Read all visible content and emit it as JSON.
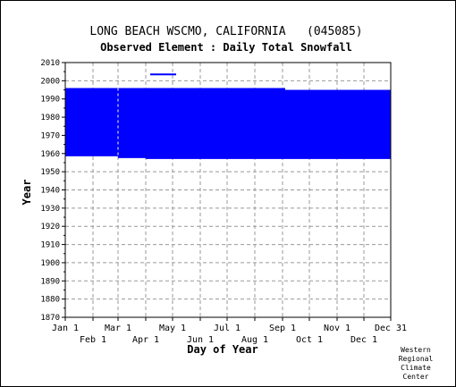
{
  "chart_data": {
    "type": "bar",
    "title": "LONG BEACH WSCMO, CALIFORNIA   (045085)",
    "subtitle": "Observed Element : Daily Total Snowfall",
    "xlabel": "Day of Year",
    "ylabel": "Year",
    "xlim": [
      1,
      365
    ],
    "ylim": [
      1870,
      2010
    ],
    "y_ticks": [
      2010,
      2000,
      1990,
      1980,
      1970,
      1960,
      1950,
      1940,
      1930,
      1920,
      1910,
      1900,
      1890,
      1880,
      1870
    ],
    "x_ticks_top": [
      {
        "label": "Jan 1",
        "day": 1
      },
      {
        "label": "Mar 1",
        "day": 60
      },
      {
        "label": "May 1",
        "day": 121
      },
      {
        "label": "Jul 1",
        "day": 182
      },
      {
        "label": "Sep 1",
        "day": 244
      },
      {
        "label": "Nov 1",
        "day": 305
      },
      {
        "label": "Dec 31",
        "day": 365
      }
    ],
    "x_ticks_bottom": [
      {
        "label": "Feb 1",
        "day": 32
      },
      {
        "label": "Apr 1",
        "day": 91
      },
      {
        "label": "Jun 1",
        "day": 152
      },
      {
        "label": "Aug 1",
        "day": 213
      },
      {
        "label": "Oct 1",
        "day": 274
      },
      {
        "label": "Dec 1",
        "day": 335
      }
    ],
    "grid": true,
    "bar_color": "#0000ff",
    "gap_line_color": "#ffffff",
    "records": [
      {
        "day_start": 1,
        "day_end": 60,
        "year_start": 1958.5,
        "year_end": 1996
      },
      {
        "day_start": 60,
        "day_end": 91,
        "year_start": 1957.5,
        "year_end": 1996
      },
      {
        "day_start": 91,
        "day_end": 247,
        "year_start": 1957,
        "year_end": 1996
      },
      {
        "day_start": 247,
        "day_end": 365,
        "year_start": 1957,
        "year_end": 1995
      }
    ],
    "partial_records": [
      {
        "day_start": 96,
        "day_end": 125,
        "year": 2003.5
      }
    ],
    "missing_day_lines": [
      60
    ]
  },
  "credit": [
    "Western",
    "Regional",
    "Climate",
    "Center"
  ]
}
